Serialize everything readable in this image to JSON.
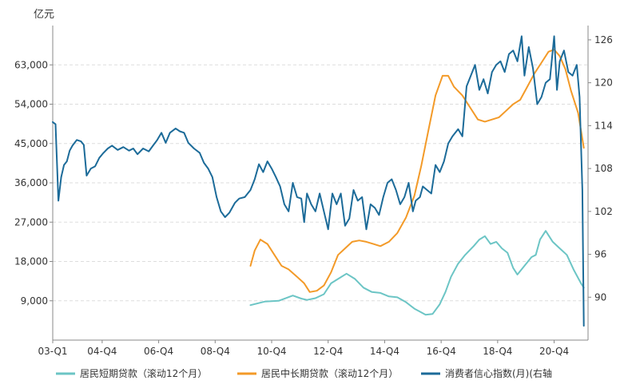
{
  "chart_data": {
    "type": "line",
    "left_axis_unit": "亿元",
    "left_axis": {
      "min": 0,
      "max": 72000,
      "ticks": [
        "9,000",
        "18,000",
        "27,000",
        "36,000",
        "45,000",
        "54,000",
        "63,000"
      ],
      "tick_values": [
        9000,
        18000,
        27000,
        36000,
        45000,
        54000,
        63000
      ]
    },
    "right_axis": {
      "min": 84,
      "max": 128,
      "ticks": [
        "90",
        "96",
        "102",
        "108",
        "114",
        "120",
        "126"
      ],
      "tick_values": [
        90,
        96,
        102,
        108,
        114,
        120,
        126
      ]
    },
    "x_axis": {
      "t_min": 2003.0,
      "t_max": 2021.95,
      "labels": [
        "03-Q1",
        "04-Q4",
        "06-Q4",
        "08-Q4",
        "10-Q4",
        "12-Q4",
        "14-Q4",
        "16-Q4",
        "18-Q4",
        "20-Q4"
      ],
      "label_t": [
        2003.0,
        2004.75,
        2006.75,
        2008.75,
        2010.75,
        2012.75,
        2014.75,
        2016.75,
        2018.75,
        2020.75
      ]
    },
    "grid": "horizontal dashed",
    "legend_position": "bottom",
    "series": [
      {
        "name": "居民短期贷款（滚动12个月）",
        "axis": "left",
        "color": "#6cc5c5",
        "points": [
          [
            2010.0,
            8000
          ],
          [
            2010.5,
            8800
          ],
          [
            2011.0,
            9000
          ],
          [
            2011.5,
            10200
          ],
          [
            2011.8,
            9500
          ],
          [
            2012.0,
            9200
          ],
          [
            2012.3,
            9600
          ],
          [
            2012.6,
            10500
          ],
          [
            2012.85,
            13000
          ],
          [
            2013.1,
            14000
          ],
          [
            2013.4,
            15200
          ],
          [
            2013.7,
            14000
          ],
          [
            2014.0,
            12000
          ],
          [
            2014.3,
            11000
          ],
          [
            2014.6,
            10800
          ],
          [
            2014.9,
            10000
          ],
          [
            2015.2,
            9800
          ],
          [
            2015.5,
            8700
          ],
          [
            2015.8,
            7200
          ],
          [
            2016.0,
            6500
          ],
          [
            2016.2,
            5800
          ],
          [
            2016.45,
            6000
          ],
          [
            2016.7,
            8200
          ],
          [
            2016.9,
            11000
          ],
          [
            2017.1,
            14500
          ],
          [
            2017.35,
            17500
          ],
          [
            2017.6,
            19500
          ],
          [
            2017.9,
            21500
          ],
          [
            2018.1,
            23000
          ],
          [
            2018.3,
            23800
          ],
          [
            2018.5,
            22000
          ],
          [
            2018.7,
            22500
          ],
          [
            2018.9,
            21000
          ],
          [
            2019.1,
            20000
          ],
          [
            2019.3,
            16500
          ],
          [
            2019.45,
            15000
          ],
          [
            2019.7,
            17000
          ],
          [
            2019.95,
            19000
          ],
          [
            2020.1,
            19500
          ],
          [
            2020.25,
            23000
          ],
          [
            2020.45,
            25000
          ],
          [
            2020.7,
            22500
          ],
          [
            2020.95,
            21000
          ],
          [
            2021.2,
            19500
          ],
          [
            2021.45,
            16000
          ],
          [
            2021.7,
            13000
          ],
          [
            2021.8,
            12000
          ]
        ]
      },
      {
        "name": "居民中长期贷款（滚动12个月）",
        "axis": "left",
        "color": "#f39a28",
        "points": [
          [
            2010.0,
            17000
          ],
          [
            2010.15,
            20500
          ],
          [
            2010.35,
            23000
          ],
          [
            2010.6,
            22000
          ],
          [
            2010.85,
            19500
          ],
          [
            2011.1,
            17000
          ],
          [
            2011.35,
            16200
          ],
          [
            2011.65,
            14500
          ],
          [
            2011.9,
            13000
          ],
          [
            2012.1,
            11000
          ],
          [
            2012.35,
            11300
          ],
          [
            2012.6,
            12500
          ],
          [
            2012.85,
            15500
          ],
          [
            2013.1,
            19500
          ],
          [
            2013.35,
            21000
          ],
          [
            2013.6,
            22500
          ],
          [
            2013.85,
            22800
          ],
          [
            2014.1,
            22500
          ],
          [
            2014.35,
            22000
          ],
          [
            2014.6,
            21500
          ],
          [
            2014.9,
            22500
          ],
          [
            2015.2,
            24500
          ],
          [
            2015.5,
            28000
          ],
          [
            2015.8,
            33000
          ],
          [
            2016.05,
            40000
          ],
          [
            2016.3,
            48000
          ],
          [
            2016.55,
            56000
          ],
          [
            2016.8,
            60500
          ],
          [
            2017.0,
            60500
          ],
          [
            2017.2,
            58000
          ],
          [
            2017.5,
            56000
          ],
          [
            2017.8,
            53000
          ],
          [
            2018.05,
            50500
          ],
          [
            2018.3,
            50000
          ],
          [
            2018.55,
            50500
          ],
          [
            2018.8,
            51000
          ],
          [
            2019.05,
            52500
          ],
          [
            2019.3,
            54000
          ],
          [
            2019.55,
            55000
          ],
          [
            2019.8,
            58000
          ],
          [
            2020.05,
            61000
          ],
          [
            2020.3,
            63500
          ],
          [
            2020.55,
            66000
          ],
          [
            2020.75,
            66500
          ],
          [
            2020.95,
            65000
          ],
          [
            2021.15,
            62000
          ],
          [
            2021.35,
            57000
          ],
          [
            2021.6,
            52000
          ],
          [
            2021.8,
            44000
          ]
        ]
      },
      {
        "name": "消费者信心指数(月)(右轴",
        "axis": "right",
        "color": "#1c6b99",
        "points": [
          [
            2003.0,
            114.5
          ],
          [
            2003.1,
            114.2
          ],
          [
            2003.2,
            103.5
          ],
          [
            2003.3,
            106.8
          ],
          [
            2003.4,
            108.5
          ],
          [
            2003.5,
            109.0
          ],
          [
            2003.6,
            110.5
          ],
          [
            2003.7,
            111.2
          ],
          [
            2003.85,
            112.0
          ],
          [
            2004.0,
            111.8
          ],
          [
            2004.1,
            111.3
          ],
          [
            2004.2,
            107.0
          ],
          [
            2004.35,
            108.0
          ],
          [
            2004.5,
            108.3
          ],
          [
            2004.65,
            109.5
          ],
          [
            2004.8,
            110.2
          ],
          [
            2004.95,
            110.8
          ],
          [
            2005.1,
            111.2
          ],
          [
            2005.3,
            110.6
          ],
          [
            2005.5,
            111.0
          ],
          [
            2005.7,
            110.5
          ],
          [
            2005.85,
            110.8
          ],
          [
            2006.0,
            110.0
          ],
          [
            2006.2,
            110.8
          ],
          [
            2006.4,
            110.4
          ],
          [
            2006.55,
            111.2
          ],
          [
            2006.7,
            112.0
          ],
          [
            2006.85,
            113.0
          ],
          [
            2007.0,
            111.6
          ],
          [
            2007.15,
            113.0
          ],
          [
            2007.35,
            113.6
          ],
          [
            2007.5,
            113.2
          ],
          [
            2007.65,
            113.0
          ],
          [
            2007.8,
            111.6
          ],
          [
            2008.0,
            110.8
          ],
          [
            2008.2,
            110.2
          ],
          [
            2008.35,
            108.8
          ],
          [
            2008.5,
            108.0
          ],
          [
            2008.65,
            106.8
          ],
          [
            2008.8,
            104.0
          ],
          [
            2008.95,
            102.0
          ],
          [
            2009.1,
            101.2
          ],
          [
            2009.25,
            101.8
          ],
          [
            2009.45,
            103.2
          ],
          [
            2009.6,
            103.8
          ],
          [
            2009.8,
            104.0
          ],
          [
            2010.0,
            105.0
          ],
          [
            2010.15,
            106.5
          ],
          [
            2010.3,
            108.6
          ],
          [
            2010.45,
            107.5
          ],
          [
            2010.6,
            109.0
          ],
          [
            2010.75,
            108.0
          ],
          [
            2010.9,
            106.8
          ],
          [
            2011.05,
            105.5
          ],
          [
            2011.2,
            103.0
          ],
          [
            2011.35,
            102.0
          ],
          [
            2011.5,
            106.0
          ],
          [
            2011.65,
            104.0
          ],
          [
            2011.8,
            103.8
          ],
          [
            2011.9,
            100.5
          ],
          [
            2012.0,
            104.5
          ],
          [
            2012.15,
            103.0
          ],
          [
            2012.3,
            102.0
          ],
          [
            2012.45,
            104.5
          ],
          [
            2012.6,
            102.0
          ],
          [
            2012.75,
            99.5
          ],
          [
            2012.9,
            104.5
          ],
          [
            2013.05,
            103.0
          ],
          [
            2013.2,
            104.5
          ],
          [
            2013.35,
            100.0
          ],
          [
            2013.5,
            101.0
          ],
          [
            2013.65,
            105.0
          ],
          [
            2013.8,
            103.5
          ],
          [
            2013.95,
            104.0
          ],
          [
            2014.1,
            99.5
          ],
          [
            2014.25,
            103.0
          ],
          [
            2014.4,
            102.5
          ],
          [
            2014.55,
            101.5
          ],
          [
            2014.7,
            104.0
          ],
          [
            2014.85,
            106.0
          ],
          [
            2015.0,
            106.5
          ],
          [
            2015.15,
            105.0
          ],
          [
            2015.3,
            103.0
          ],
          [
            2015.45,
            104.0
          ],
          [
            2015.6,
            106.0
          ],
          [
            2015.75,
            102.0
          ],
          [
            2015.85,
            103.5
          ],
          [
            2016.0,
            104.0
          ],
          [
            2016.1,
            105.5
          ],
          [
            2016.25,
            105.0
          ],
          [
            2016.4,
            104.5
          ],
          [
            2016.55,
            108.5
          ],
          [
            2016.7,
            107.5
          ],
          [
            2016.85,
            109.0
          ],
          [
            2017.0,
            111.5
          ],
          [
            2017.15,
            112.5
          ],
          [
            2017.35,
            113.5
          ],
          [
            2017.5,
            112.5
          ],
          [
            2017.65,
            119.5
          ],
          [
            2017.8,
            121.0
          ],
          [
            2017.95,
            122.5
          ],
          [
            2018.1,
            119.0
          ],
          [
            2018.25,
            120.5
          ],
          [
            2018.4,
            118.5
          ],
          [
            2018.55,
            121.5
          ],
          [
            2018.7,
            122.5
          ],
          [
            2018.85,
            123.0
          ],
          [
            2019.0,
            121.5
          ],
          [
            2019.15,
            124.0
          ],
          [
            2019.3,
            124.5
          ],
          [
            2019.45,
            123.0
          ],
          [
            2019.6,
            126.5
          ],
          [
            2019.7,
            121.0
          ],
          [
            2019.85,
            125.0
          ],
          [
            2020.0,
            122.0
          ],
          [
            2020.15,
            117.0
          ],
          [
            2020.3,
            118.0
          ],
          [
            2020.45,
            120.0
          ],
          [
            2020.6,
            120.5
          ],
          [
            2020.75,
            126.5
          ],
          [
            2020.85,
            119.0
          ],
          [
            2020.95,
            123.0
          ],
          [
            2021.1,
            124.5
          ],
          [
            2021.25,
            121.5
          ],
          [
            2021.4,
            121.0
          ],
          [
            2021.55,
            122.5
          ],
          [
            2021.65,
            118.0
          ],
          [
            2021.75,
            105.0
          ],
          [
            2021.8,
            86.0
          ]
        ]
      }
    ]
  }
}
